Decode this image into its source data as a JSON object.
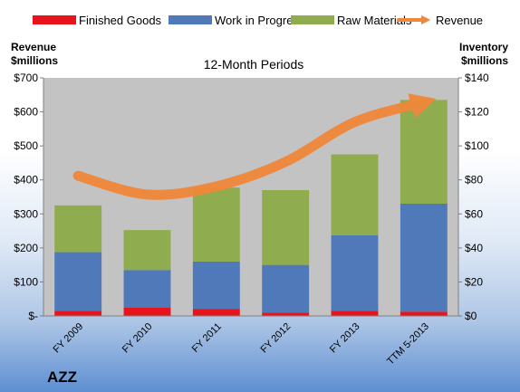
{
  "chart_data": {
    "type": "bar",
    "title": "12-Month Periods",
    "company": "AZZ",
    "left_axis_label_line1": "Revenue",
    "left_axis_label_line2": "$millions",
    "right_axis_label_line1": "Inventory",
    "right_axis_label_line2": "$millions",
    "categories": [
      "FY 2009",
      "FY 2010",
      "FY 2011",
      "FY 2012",
      "FY 2013",
      "TTM 5-2013"
    ],
    "left_axis": {
      "min": 0,
      "max": 700,
      "ticks": [
        0,
        100,
        200,
        300,
        400,
        500,
        600,
        700
      ],
      "tick_labels": [
        "$-",
        "$100",
        "$200",
        "$300",
        "$400",
        "$500",
        "$600",
        "$700"
      ]
    },
    "right_axis": {
      "min": 0,
      "max": 140,
      "ticks": [
        0,
        20,
        40,
        60,
        80,
        100,
        120,
        140
      ],
      "tick_labels": [
        "$0",
        "$20",
        "$40",
        "$60",
        "$80",
        "$100",
        "$120",
        "$140"
      ]
    },
    "grid": false,
    "legend_position": "top",
    "series": [
      {
        "name": "Finished Goods",
        "kind": "stacked_bar",
        "axis": "right",
        "color": "#e8141c",
        "values": [
          3.0,
          5.0,
          4.0,
          2.0,
          3.0,
          2.5
        ]
      },
      {
        "name": "Work in Progress",
        "kind": "stacked_bar",
        "axis": "right",
        "color": "#4f79b8",
        "values": [
          34.5,
          22.0,
          28.0,
          28.0,
          44.5,
          63.5
        ]
      },
      {
        "name": "Raw Materials",
        "kind": "stacked_bar",
        "axis": "right",
        "color": "#8fac4e",
        "values": [
          27.5,
          23.5,
          43.5,
          44.0,
          47.5,
          61.0
        ]
      },
      {
        "name": "Revenue",
        "kind": "line",
        "axis": "left",
        "color": "#f0883a",
        "values": [
          412,
          357,
          381,
          453,
          570,
          628
        ]
      }
    ]
  }
}
